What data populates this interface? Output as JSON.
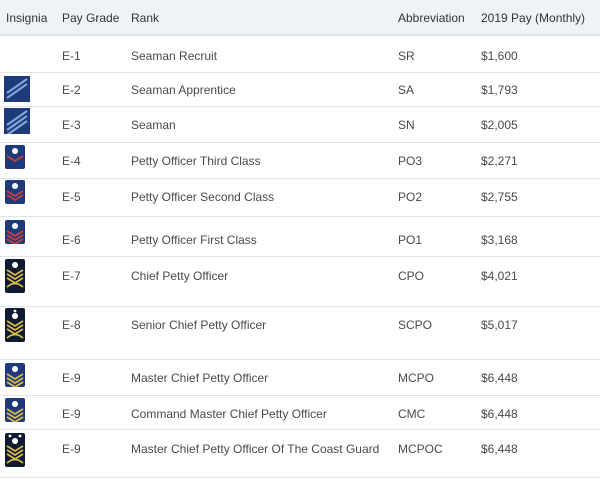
{
  "colors": {
    "header_bg": "#f0f3f6",
    "border": "#dfe4ea",
    "text": "#4a4a4a",
    "navy": "#1f3a7a",
    "stripe": "#7fa8d8",
    "gold": "#d8bc4a"
  },
  "table": {
    "headers": [
      "Insignia",
      "Pay Grade",
      "Rank",
      "Abbreviation",
      "2019 Pay (Monthly)"
    ],
    "rows": [
      {
        "insignia": "none",
        "grade": "E-1",
        "rank": "Seaman Recruit",
        "abbr": "SR",
        "pay": "$1,600"
      },
      {
        "insignia": "two-stripe-icon",
        "grade": "E-2",
        "rank": "Seaman Apprentice",
        "abbr": "SA",
        "pay": "$1,793"
      },
      {
        "insignia": "three-stripe-icon",
        "grade": "E-3",
        "rank": "Seaman",
        "abbr": "SN",
        "pay": "$2,005"
      },
      {
        "insignia": "po3-chevron-icon",
        "grade": "E-4",
        "rank": "Petty Officer Third Class",
        "abbr": "PO3",
        "pay": "$2,271"
      },
      {
        "insignia": "po2-chevron-icon",
        "grade": "E-5",
        "rank": "Petty Officer Second Class",
        "abbr": "PO2",
        "pay": "$2,755"
      },
      {
        "insignia": "po1-chevron-icon",
        "grade": "E-6",
        "rank": "Petty Officer First Class",
        "abbr": "PO1",
        "pay": "$3,168"
      },
      {
        "insignia": "cpo-chevron-icon",
        "grade": "E-7",
        "rank": "Chief Petty Officer",
        "abbr": "CPO",
        "pay": "$4,021"
      },
      {
        "insignia": "scpo-chevron-icon",
        "grade": "E-8",
        "rank": "Senior Chief Petty Officer",
        "abbr": "SCPO",
        "pay": "$5,017"
      },
      {
        "insignia": "mcpo-chevron-icon",
        "grade": "E-9",
        "rank": "Master Chief Petty Officer",
        "abbr": "MCPO",
        "pay": "$6,448"
      },
      {
        "insignia": "cmc-chevron-icon",
        "grade": "E-9",
        "rank": "Command Master Chief Petty Officer",
        "abbr": "CMC",
        "pay": "$6,448"
      },
      {
        "insignia": "mcpoc-chevron-icon",
        "grade": "E-9",
        "rank": "Master Chief Petty Officer Of The Coast Guard",
        "abbr": "MCPOC",
        "pay": "$6,448"
      }
    ]
  }
}
